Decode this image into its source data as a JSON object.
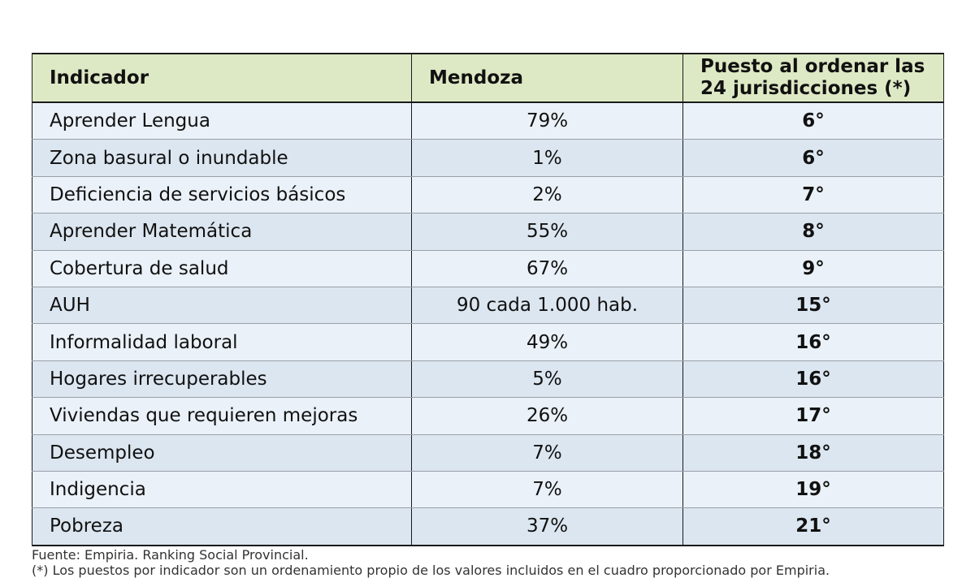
{
  "table": {
    "headers": {
      "indicator": "Indicador",
      "province": "Mendoza",
      "rank_line1": "Puesto al ordenar las",
      "rank_line2": "24 jurisdicciones (*)"
    },
    "rows": [
      {
        "indicator": "Aprender Lengua",
        "value": "79%",
        "rank": "6°"
      },
      {
        "indicator": "Zona basural o inundable",
        "value": "1%",
        "rank": "6°"
      },
      {
        "indicator": "Deficiencia de servicios básicos",
        "value": "2%",
        "rank": "7°"
      },
      {
        "indicator": "Aprender Matemática",
        "value": "55%",
        "rank": "8°"
      },
      {
        "indicator": "Cobertura de salud",
        "value": "67%",
        "rank": "9°"
      },
      {
        "indicator": "AUH",
        "value": "90 cada 1.000 hab.",
        "rank": "15°"
      },
      {
        "indicator": "Informalidad laboral",
        "value": "49%",
        "rank": "16°"
      },
      {
        "indicator": "Hogares irrecuperables",
        "value": "5%",
        "rank": "16°"
      },
      {
        "indicator": "Viviendas que requieren mejoras",
        "value": "26%",
        "rank": "17°"
      },
      {
        "indicator": "Desempleo",
        "value": "7%",
        "rank": "18°"
      },
      {
        "indicator": "Indigencia",
        "value": "7%",
        "rank": "19°"
      },
      {
        "indicator": "Pobreza",
        "value": "37%",
        "rank": "21°"
      }
    ]
  },
  "notes": {
    "source": "Fuente: Empiria. Ranking Social Provincial.",
    "footnote": "(*) Los puestos por indicador son un ordenamiento propio de los valores incluidos en el cuadro proporcionado por Empiria."
  },
  "colors": {
    "header_bg": "#dde9c4",
    "row_light": "#eaf1f8",
    "row_dark": "#dce6f0"
  }
}
